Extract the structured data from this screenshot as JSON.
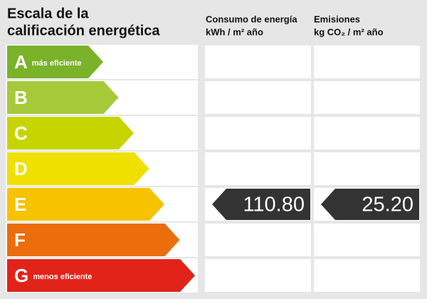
{
  "title": [
    "Escala de la",
    "calificación energética"
  ],
  "columns": [
    {
      "title": "Consumo de energía",
      "unit": "kWh / m² año"
    },
    {
      "title": "Emisiones",
      "unit": "kg CO₂ / m² año"
    }
  ],
  "rows": [
    {
      "letter": "A",
      "note": "más eficiente",
      "color": "#7ab22a"
    },
    {
      "letter": "B",
      "color": "#a6c93a"
    },
    {
      "letter": "C",
      "color": "#c6d400"
    },
    {
      "letter": "D",
      "color": "#efe000"
    },
    {
      "letter": "E",
      "color": "#f7c200",
      "values": [
        "110.80",
        "25.20"
      ]
    },
    {
      "letter": "F",
      "color": "#eb6d0c"
    },
    {
      "letter": "G",
      "note": "menos eficiente",
      "color": "#e2231a"
    }
  ]
}
